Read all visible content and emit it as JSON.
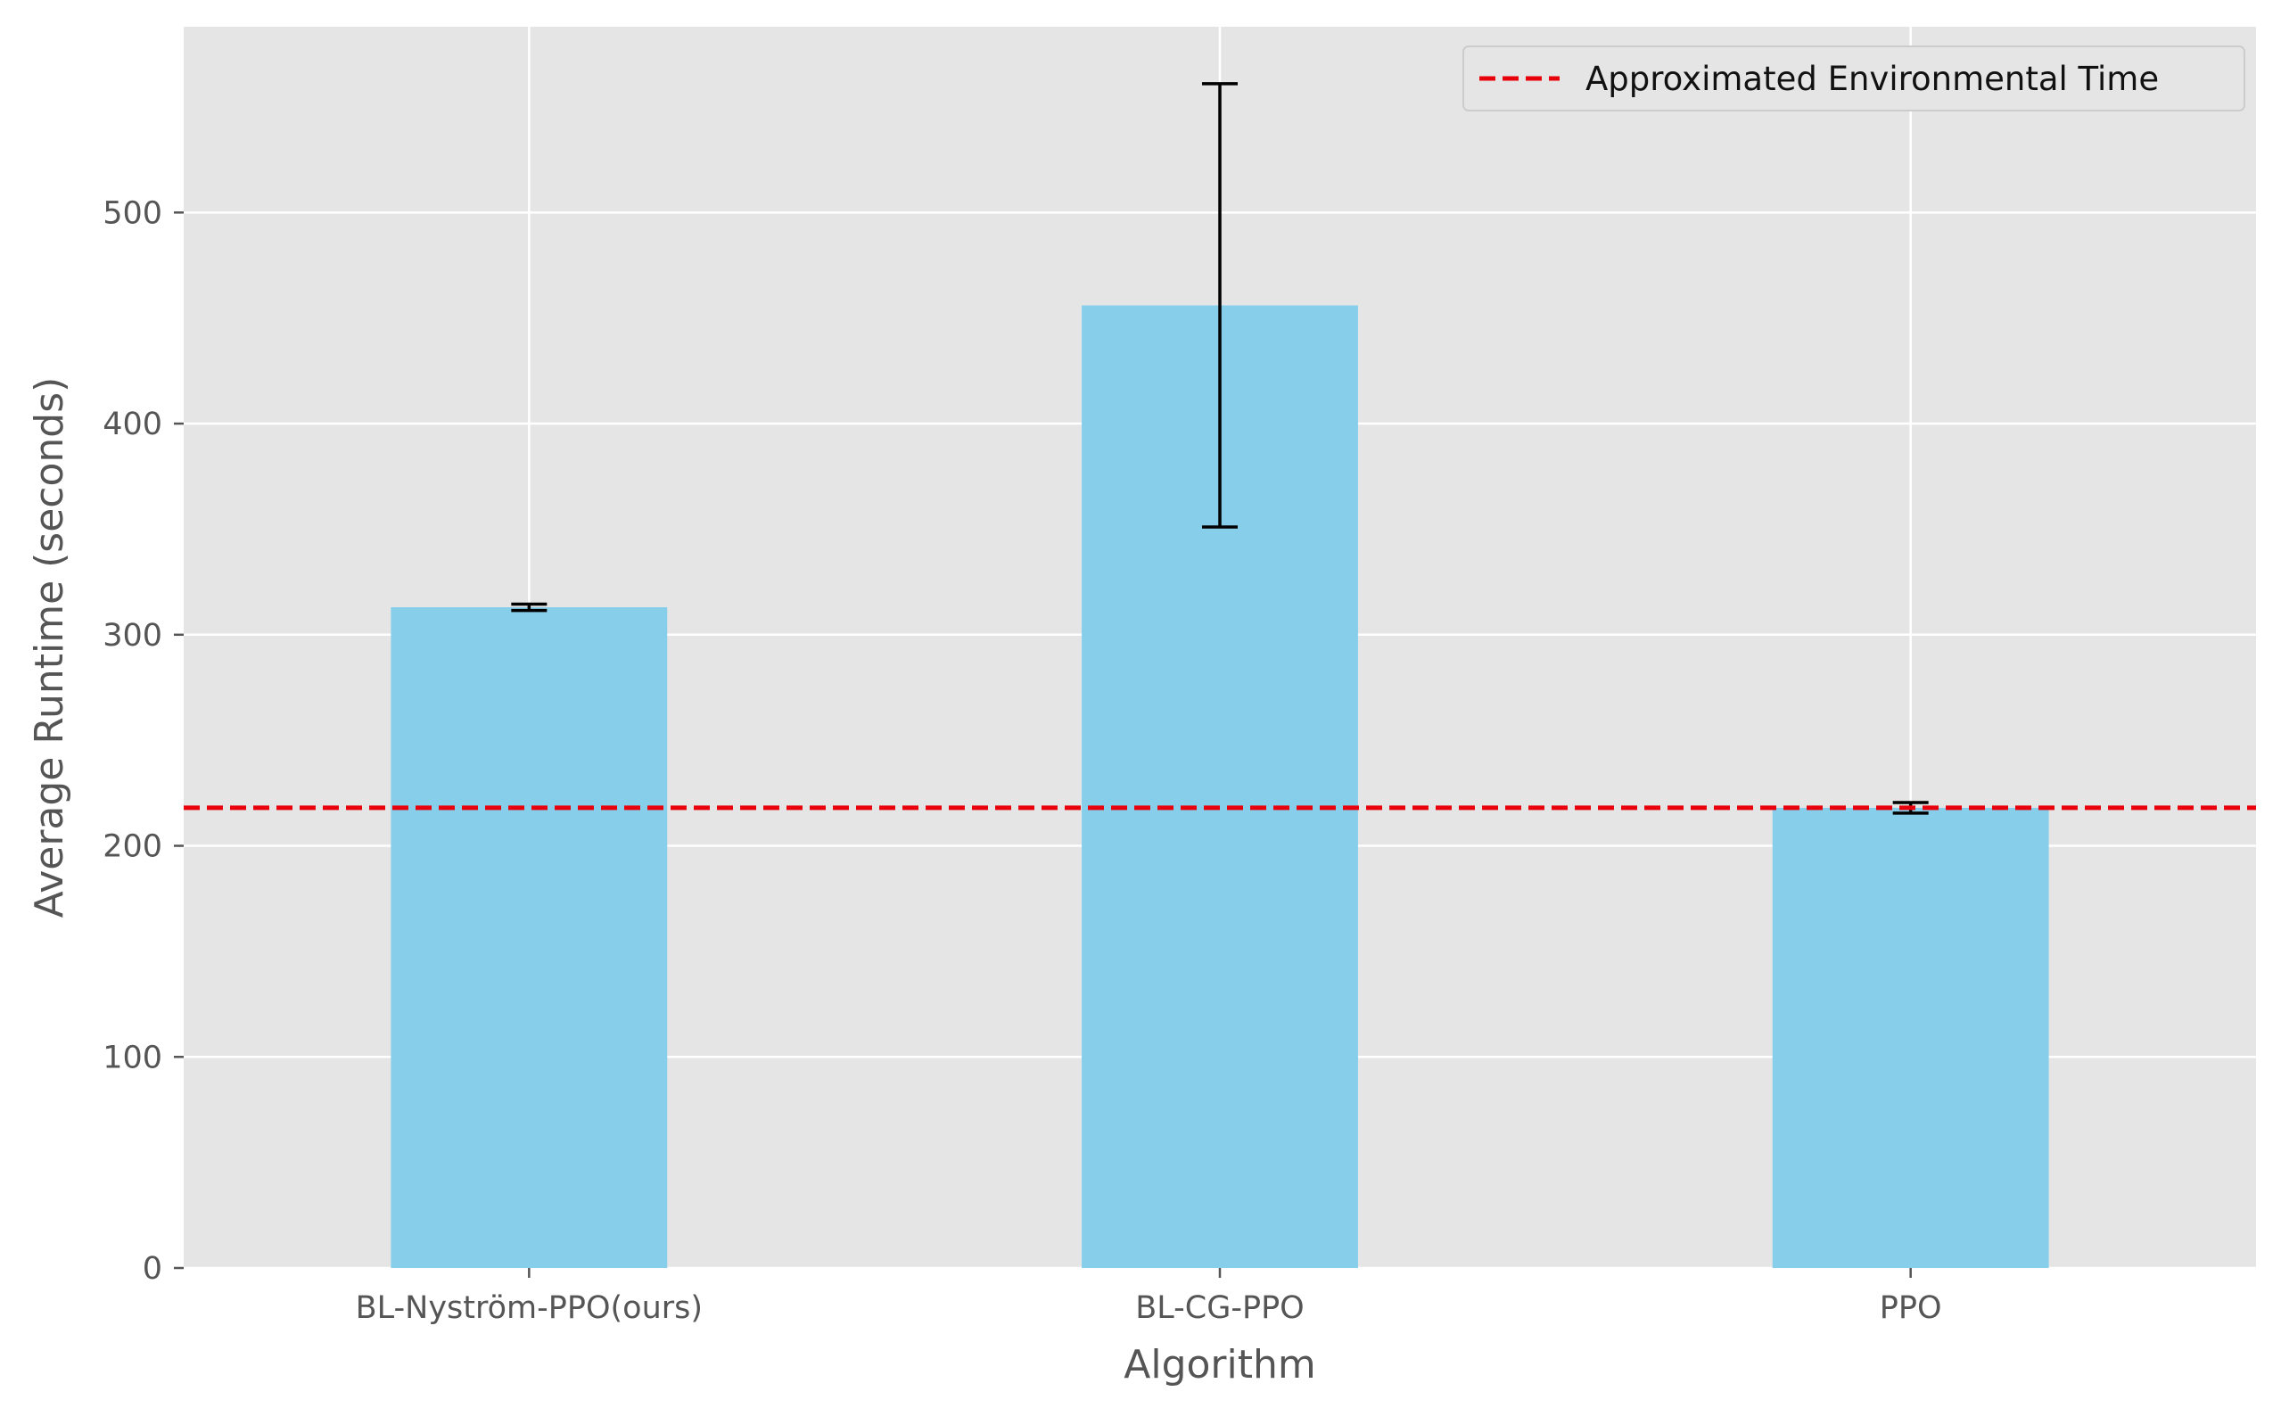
{
  "chart_data": {
    "type": "bar",
    "title": "",
    "xlabel": "Algorithm",
    "ylabel": "Average Runtime (seconds)",
    "categories": [
      "BL-Nyström-PPO(ours)",
      "BL-CG-PPO",
      "PPO"
    ],
    "values": [
      313,
      456,
      218
    ],
    "errors": [
      1.5,
      105,
      2.5
    ],
    "ylim": [
      0,
      588
    ],
    "yticks": [
      0,
      100,
      200,
      300,
      400,
      500
    ],
    "grid": true,
    "bar_color": "#87CEEB",
    "background_color": "#E5E5E5",
    "reference_line": {
      "label": "Approximated Environmental Time",
      "value": 218,
      "color": "#E8000B",
      "style": "dashed"
    },
    "legend_position": "top-right"
  }
}
